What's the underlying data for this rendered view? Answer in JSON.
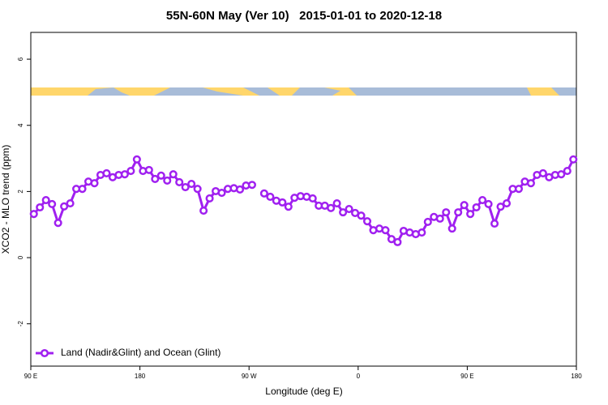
{
  "chart_data": {
    "type": "line",
    "title": "55N-60N May (Ver 10)   2015-01-01 to 2020-12-18",
    "xlabel": "Longitude (deg E)",
    "ylabel": "XCO2 - MLO trend (ppm)",
    "xlim": [
      90,
      540
    ],
    "ylim": [
      -3.28,
      6.81
    ],
    "xticks": [
      {
        "value": 90,
        "label": "90 E"
      },
      180,
      {
        "value": 270,
        "label": "90 W"
      },
      {
        "value": 360,
        "label": "0"
      },
      {
        "value": 450,
        "label": "90 E"
      },
      {
        "value": 540,
        "label": "180"
      }
    ],
    "yticks": [
      -2,
      0,
      2,
      4,
      6
    ],
    "grid": false,
    "legend": "bottomleft",
    "x": [
      92.5,
      97.5,
      102.5,
      107.5,
      112.5,
      117.5,
      122.5,
      127.5,
      132.5,
      137.5,
      142.5,
      147.5,
      152.5,
      157.5,
      162.5,
      167.5,
      172.5,
      177.5,
      182.5,
      187.5,
      192.5,
      197.5,
      202.5,
      207.5,
      212.5,
      217.5,
      222.5,
      227.5,
      232.5,
      237.5,
      242.5,
      247.5,
      252.5,
      257.5,
      262.5,
      267.5,
      272.5,
      277.5,
      282.5,
      287.5,
      292.5,
      297.5,
      302.5,
      307.5,
      312.5,
      317.5,
      322.5,
      327.5,
      332.5,
      337.5,
      342.5,
      347.5,
      352.5,
      357.5,
      362.5,
      367.5,
      372.5,
      377.5,
      382.5,
      387.5,
      392.5,
      397.5,
      402.5,
      407.5,
      412.5,
      417.5,
      422.5,
      427.5,
      432.5,
      437.5,
      442.5,
      447.5,
      452.5,
      457.5,
      462.5,
      467.5,
      472.5,
      477.5,
      482.5,
      487.5,
      492.5,
      497.5,
      502.5,
      507.5,
      512.5,
      517.5,
      522.5,
      527.5,
      532.5,
      537.5
    ],
    "series": [
      {
        "name": "Land (Nadir&Glint) and Ocean (Glint)",
        "color": "#a020f0",
        "values": [
          1.32,
          1.52,
          1.74,
          1.62,
          1.05,
          1.55,
          1.64,
          2.08,
          2.08,
          2.3,
          2.25,
          2.5,
          2.55,
          2.43,
          2.5,
          2.52,
          2.62,
          2.97,
          2.62,
          2.65,
          2.38,
          2.48,
          2.33,
          2.52,
          2.28,
          2.13,
          2.23,
          2.08,
          1.42,
          1.79,
          2.01,
          1.96,
          2.08,
          2.1,
          2.06,
          2.18,
          2.2,
          null,
          1.94,
          1.84,
          1.72,
          1.67,
          1.54,
          1.81,
          1.86,
          1.84,
          1.79,
          1.57,
          1.57,
          1.5,
          1.64,
          1.37,
          1.47,
          1.35,
          1.27,
          1.1,
          0.83,
          0.88,
          0.83,
          0.56,
          0.47,
          0.81,
          0.76,
          0.71,
          0.76,
          1.08,
          1.23,
          1.18,
          1.37,
          0.88,
          1.37,
          1.59,
          1.32,
          1.52,
          1.74,
          1.62,
          1.03,
          1.54,
          1.64,
          2.08,
          2.08,
          2.3,
          2.25,
          2.5,
          2.55,
          2.43,
          2.5,
          2.52,
          2.62,
          2.97
        ]
      }
    ]
  }
}
